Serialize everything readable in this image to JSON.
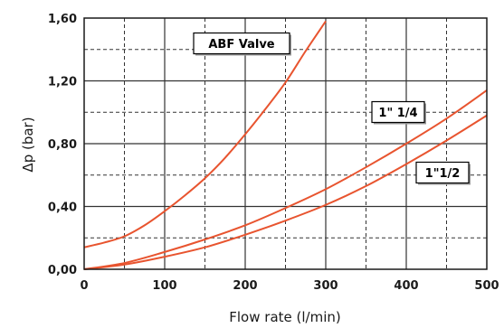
{
  "chart_data": {
    "type": "line",
    "xlabel": "Flow rate (l/min)",
    "ylabel": "Δp  (bar)",
    "xlim": [
      0,
      500
    ],
    "ylim": [
      0,
      1.6
    ],
    "x_ticks": [
      0,
      100,
      200,
      300,
      400,
      500
    ],
    "x_tick_labels": [
      "0",
      "100",
      "200",
      "300",
      "400",
      "500"
    ],
    "y_ticks": [
      0,
      0.4,
      0.8,
      1.2,
      1.6
    ],
    "y_tick_labels": [
      "0,00",
      "0,40",
      "0,80",
      "1,20",
      "1,60"
    ],
    "grid": true,
    "series": [
      {
        "name": "ABF Valve",
        "color": "#e8542f",
        "x": [
          0,
          25,
          50,
          75,
          100,
          125,
          150,
          175,
          200,
          225,
          250,
          275,
          300
        ],
        "y": [
          0.14,
          0.17,
          0.21,
          0.28,
          0.37,
          0.47,
          0.58,
          0.71,
          0.86,
          1.02,
          1.19,
          1.39,
          1.58
        ]
      },
      {
        "name": "1\" 1/4",
        "color": "#e8542f",
        "x": [
          0,
          50,
          100,
          150,
          200,
          250,
          300,
          350,
          400,
          450,
          500
        ],
        "y": [
          0.0,
          0.04,
          0.11,
          0.19,
          0.28,
          0.39,
          0.51,
          0.65,
          0.8,
          0.96,
          1.14
        ]
      },
      {
        "name": "1\"1/2",
        "color": "#e8542f",
        "x": [
          0,
          50,
          100,
          150,
          200,
          250,
          300,
          350,
          400,
          450,
          500
        ],
        "y": [
          0.0,
          0.03,
          0.08,
          0.14,
          0.22,
          0.31,
          0.41,
          0.53,
          0.67,
          0.82,
          0.98
        ]
      }
    ],
    "annotations": [
      {
        "text": "ABF Valve",
        "series": 0
      },
      {
        "text": "1\" 1/4",
        "series": 1
      },
      {
        "text": "1\"1/2",
        "series": 2
      }
    ]
  }
}
